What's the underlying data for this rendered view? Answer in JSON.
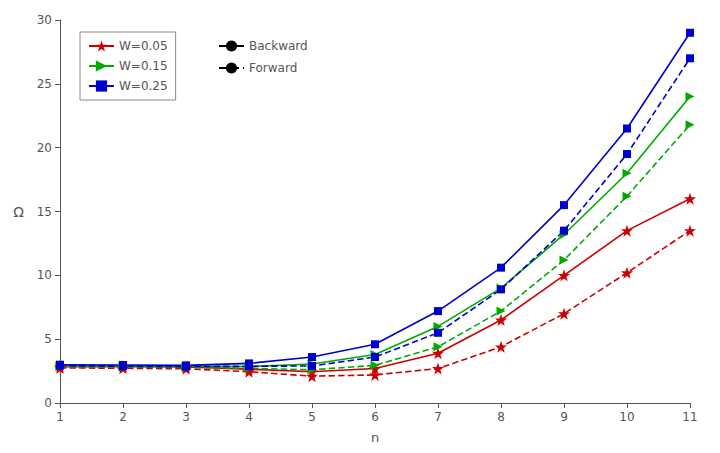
{
  "chart_data": {
    "type": "line",
    "xlabel": "n",
    "ylabel": "Ω",
    "x": [
      1,
      2,
      3,
      4,
      5,
      6,
      7,
      8,
      9,
      10,
      11
    ],
    "series": [
      {
        "name": "W=0.05",
        "color": "#cc0000",
        "marker": "star",
        "line_style": "solid",
        "values": [
          2.85,
          2.85,
          2.82,
          2.65,
          2.45,
          2.7,
          3.9,
          6.5,
          10.0,
          13.5,
          16.0
        ]
      },
      {
        "name": "W=0.15",
        "color": "#00aa00",
        "marker": "triangle_right",
        "line_style": "solid",
        "values": [
          2.9,
          2.9,
          2.88,
          2.85,
          3.05,
          3.8,
          6.0,
          9.0,
          13.2,
          18.0,
          24.0
        ]
      },
      {
        "name": "W=0.25",
        "color": "#0000cc",
        "marker": "square",
        "line_style": "solid",
        "values": [
          3.0,
          2.98,
          2.95,
          3.1,
          3.6,
          4.6,
          7.2,
          10.6,
          15.5,
          21.5,
          29.0
        ]
      },
      {
        "name": "W=0.05",
        "color": "#cc0000",
        "marker": "star",
        "line_style": "dashed",
        "values": [
          2.75,
          2.72,
          2.68,
          2.45,
          2.1,
          2.2,
          2.7,
          4.4,
          7.0,
          10.2,
          13.5
        ]
      },
      {
        "name": "W=0.15",
        "color": "#00aa00",
        "marker": "triangle_right",
        "line_style": "dashed",
        "values": [
          2.85,
          2.82,
          2.78,
          2.72,
          2.6,
          2.95,
          4.4,
          7.2,
          11.2,
          16.2,
          21.8
        ]
      },
      {
        "name": "W=0.25",
        "color": "#0000cc",
        "marker": "square",
        "line_style": "dashed",
        "values": [
          2.92,
          2.88,
          2.85,
          2.88,
          2.9,
          3.6,
          5.5,
          8.9,
          13.5,
          19.5,
          27.0
        ]
      }
    ],
    "line_styles": [
      {
        "name": "Backward",
        "line_style": "solid",
        "color": "#000000"
      },
      {
        "name": "Forward",
        "line_style": "dashed",
        "color": "#000000"
      }
    ],
    "xlim": [
      1,
      11
    ],
    "ylim": [
      0,
      30
    ],
    "xticks": [
      1,
      2,
      3,
      4,
      5,
      6,
      7,
      8,
      9,
      10,
      11
    ],
    "yticks": [
      0,
      5,
      10,
      15,
      20,
      25,
      30
    ],
    "grid": false,
    "legend": "upper left"
  }
}
